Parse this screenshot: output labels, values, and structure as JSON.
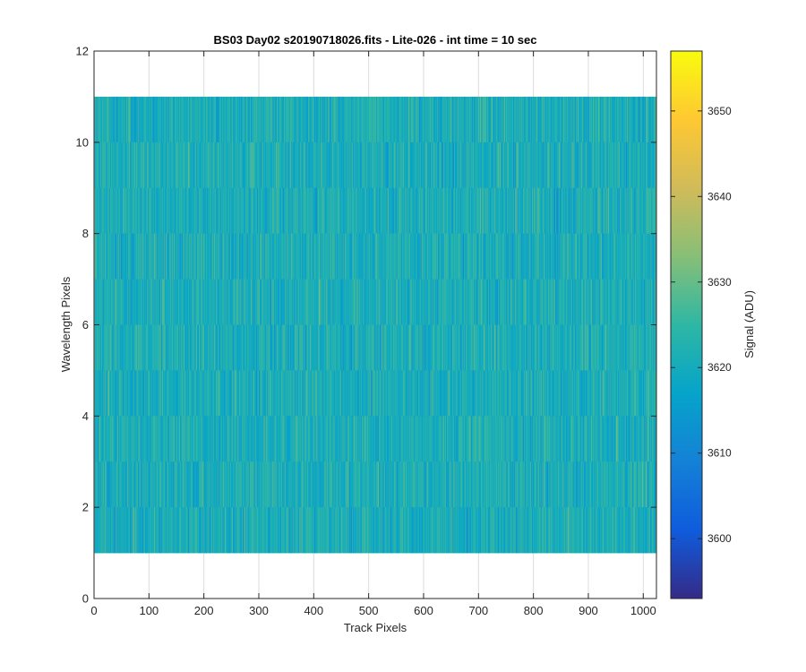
{
  "chart_data": {
    "type": "heatmap",
    "title": "BS03 Day02  s20190718026.fits - Lite-026 - int time = 10 sec",
    "xlabel": "Track Pixels",
    "ylabel": "Wavelength Pixels",
    "xlim": [
      0,
      1024
    ],
    "ylim": [
      0,
      12
    ],
    "xticks": [
      0,
      100,
      200,
      300,
      400,
      500,
      600,
      700,
      800,
      900,
      1000
    ],
    "yticks": [
      0,
      2,
      4,
      6,
      8,
      10,
      12
    ],
    "grid": true,
    "data_extent": {
      "x": [
        1,
        1024
      ],
      "y": [
        1,
        11
      ]
    },
    "rows": 10,
    "columns": 1024,
    "signal_mean_adu": 3621,
    "colorbar": {
      "label": "Signal (ADU)",
      "range": [
        3593,
        3657
      ],
      "ticks": [
        3600,
        3610,
        3620,
        3630,
        3640,
        3650
      ],
      "colormap": "parula",
      "colors": [
        "#352a87",
        "#0f5cdd",
        "#1481d6",
        "#06a4ca",
        "#2eb7a4",
        "#87bf77",
        "#d1bb59",
        "#fec832",
        "#f9fb0e"
      ]
    }
  }
}
